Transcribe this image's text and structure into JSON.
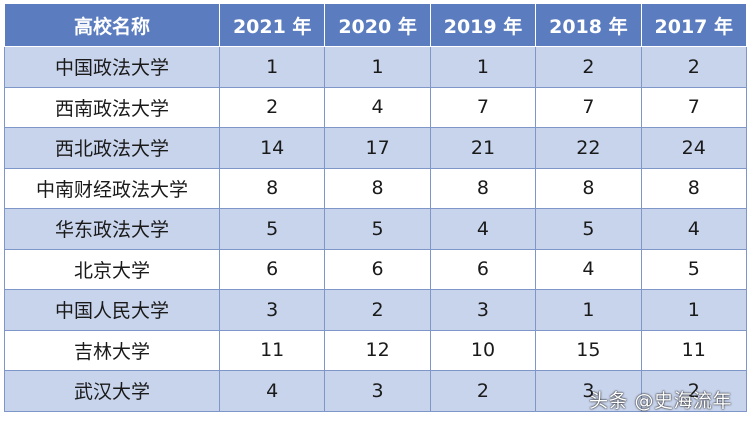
{
  "chart_data": {
    "type": "table",
    "header_label": "高校名称",
    "columns": [
      "2021 年",
      "2020 年",
      "2019 年",
      "2018 年",
      "2017 年"
    ],
    "rows": [
      {
        "name": "中国政法大学",
        "values": [
          "1",
          "1",
          "1",
          "2",
          "2"
        ]
      },
      {
        "name": "西南政法大学",
        "values": [
          "2",
          "4",
          "7",
          "7",
          "7"
        ]
      },
      {
        "name": "西北政法大学",
        "values": [
          "14",
          "17",
          "21",
          "22",
          "24"
        ]
      },
      {
        "name": "中南财经政法大学",
        "values": [
          "8",
          "8",
          "8",
          "8",
          "8"
        ]
      },
      {
        "name": "华东政法大学",
        "values": [
          "5",
          "5",
          "4",
          "5",
          "4"
        ]
      },
      {
        "name": "北京大学",
        "values": [
          "6",
          "6",
          "6",
          "4",
          "5"
        ]
      },
      {
        "name": "中国人民大学",
        "values": [
          "3",
          "2",
          "3",
          "1",
          "1"
        ]
      },
      {
        "name": "吉林大学",
        "values": [
          "11",
          "12",
          "10",
          "15",
          "11"
        ]
      },
      {
        "name": "武汉大学",
        "values": [
          "4",
          "3",
          "2",
          "3",
          "2"
        ]
      }
    ]
  },
  "watermark": "头条 @史海流年",
  "colors": {
    "header_bg": "#5b7dc0",
    "band_bg": "#c8d4ec",
    "border": "#7f97c8"
  }
}
